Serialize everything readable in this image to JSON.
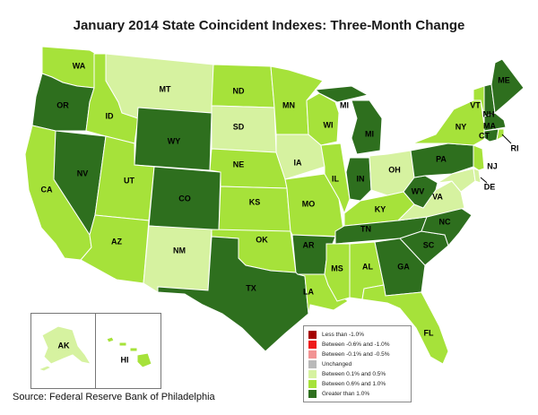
{
  "title": "January 2014 State Coincident Indexes: Three-Month Change",
  "source": "Source: Federal Reserve Bank of Philadelphia",
  "colors": {
    "lt_neg1": "#a50000",
    "neg06_neg1": "#ef1b1b",
    "neg01_neg05": "#f29393",
    "unchanged": "#b9b9b9",
    "p01_p05": "#d6f2a0",
    "p06_p10": "#a6e23a",
    "gt_1": "#2e6f1e",
    "border": "#ffffff"
  },
  "legend": {
    "items": [
      {
        "label": "Less than -1.0%",
        "color_key": "lt_neg1"
      },
      {
        "label": "Between -0.6% and -1.0%",
        "color_key": "neg06_neg1"
      },
      {
        "label": "Between -0.1% and -0.5%",
        "color_key": "neg01_neg05"
      },
      {
        "label": "Unchanged",
        "color_key": "unchanged"
      },
      {
        "label": "Between 0.1% and 0.5%",
        "color_key": "p01_p05"
      },
      {
        "label": "Between 0.6% and 1.0%",
        "color_key": "p06_p10"
      },
      {
        "label": "Greater than 1.0%",
        "color_key": "gt_1"
      }
    ]
  },
  "states": {
    "WA": "p06_p10",
    "OR": "gt_1",
    "CA": "p06_p10",
    "NV": "gt_1",
    "ID": "p06_p10",
    "MT": "p01_p05",
    "WY": "gt_1",
    "UT": "p06_p10",
    "AZ": "p06_p10",
    "CO": "gt_1",
    "NM": "p01_p05",
    "ND": "p06_p10",
    "SD": "p01_p05",
    "NE": "p06_p10",
    "KS": "p06_p10",
    "OK": "p06_p10",
    "TX": "gt_1",
    "MN": "p06_p10",
    "IA": "p01_p05",
    "MO": "p06_p10",
    "AR": "gt_1",
    "LA": "p06_p10",
    "WI": "p06_p10",
    "IL": "p06_p10",
    "MI": "gt_1",
    "IN": "gt_1",
    "OH": "p01_p05",
    "KY": "p06_p10",
    "TN": "gt_1",
    "MS": "p06_p10",
    "AL": "p06_p10",
    "GA": "gt_1",
    "FL": "p06_p10",
    "SC": "gt_1",
    "NC": "gt_1",
    "VA": "p01_p05",
    "WV": "gt_1",
    "PA": "gt_1",
    "NY": "p06_p10",
    "NJ": "p06_p10",
    "DE": "p01_p05",
    "MD": "p01_p05",
    "VT": "p06_p10",
    "NH": "gt_1",
    "ME": "gt_1",
    "MA": "gt_1",
    "CT": "gt_1",
    "RI": "p06_p10",
    "AK": "p01_p05",
    "HI": "p06_p10"
  },
  "labels": {
    "WA": "WA",
    "OR": "OR",
    "CA": "CA",
    "NV": "NV",
    "ID": "ID",
    "MT": "MT",
    "WY": "WY",
    "UT": "UT",
    "AZ": "AZ",
    "CO": "CO",
    "NM": "NM",
    "ND": "ND",
    "SD": "SD",
    "NE": "NE",
    "KS": "KS",
    "OK": "OK",
    "TX": "TX",
    "MN": "MN",
    "IA": "IA",
    "MO": "MO",
    "AR": "AR",
    "LA": "LA",
    "WI": "WI",
    "IL": "IL",
    "MI": "MI",
    "MI_UP": "MI",
    "IN": "IN",
    "OH": "OH",
    "KY": "KY",
    "TN": "TN",
    "MS": "MS",
    "AL": "AL",
    "GA": "GA",
    "FL": "FL",
    "SC": "SC",
    "NC": "NC",
    "VA": "VA",
    "WV": "WV",
    "PA": "PA",
    "NY": "NY",
    "NJ": "NJ",
    "DE": "DE",
    "VT": "VT",
    "NH": "NH",
    "ME": "ME",
    "MA": "MA",
    "CT": "CT",
    "RI": "RI",
    "AK": "AK",
    "HI": "HI"
  }
}
